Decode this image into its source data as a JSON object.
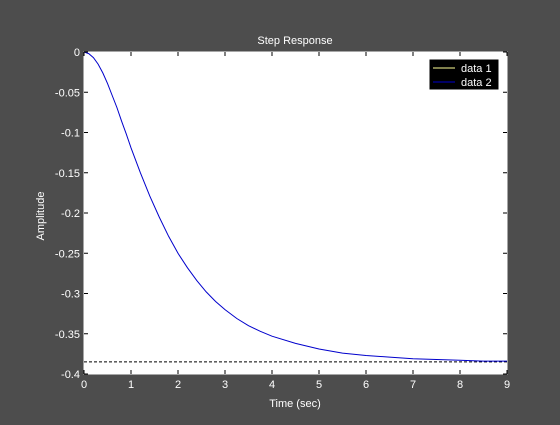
{
  "chart_data": {
    "type": "line",
    "title": "Step Response",
    "xlabel": "Time (sec)",
    "ylabel": "Amplitude",
    "xlim": [
      0,
      9
    ],
    "ylim": [
      -0.4,
      0
    ],
    "xticks": [
      0,
      1,
      2,
      3,
      4,
      5,
      6,
      7,
      8,
      9
    ],
    "yticks": [
      0,
      -0.05,
      -0.1,
      -0.15,
      -0.2,
      -0.25,
      -0.3,
      -0.35,
      -0.4
    ],
    "xtick_labels": [
      "0",
      "1",
      "2",
      "3",
      "4",
      "5",
      "6",
      "7",
      "8",
      "9"
    ],
    "ytick_labels": [
      "0",
      "-0.05",
      "-0.1",
      "-0.15",
      "-0.2",
      "-0.25",
      "-0.3",
      "-0.35",
      "-0.4"
    ],
    "grid": false,
    "legend_position": "top-right",
    "steady_state": -0.385,
    "colors": {
      "figure_bg": "#4d4d4d",
      "axes_bg": "#ffffff",
      "axes_fg": "#ffffff",
      "legend_bg": "#000000"
    },
    "series": [
      {
        "name": "data 1",
        "color": "#ffff99",
        "x": [],
        "y": []
      },
      {
        "name": "data 2",
        "color": "#0000cc",
        "x": [
          0,
          0.1,
          0.2,
          0.3,
          0.4,
          0.5,
          0.6,
          0.7,
          0.8,
          0.9,
          1.0,
          1.2,
          1.4,
          1.6,
          1.8,
          2.0,
          2.2,
          2.4,
          2.6,
          2.8,
          3.0,
          3.25,
          3.5,
          3.75,
          4.0,
          4.5,
          5.0,
          5.5,
          6.0,
          6.5,
          7.0,
          7.5,
          8.0,
          8.5,
          9.0
        ],
        "y": [
          0,
          -0.002,
          -0.007,
          -0.015,
          -0.026,
          -0.039,
          -0.054,
          -0.069,
          -0.086,
          -0.102,
          -0.119,
          -0.15,
          -0.179,
          -0.205,
          -0.229,
          -0.25,
          -0.268,
          -0.284,
          -0.298,
          -0.31,
          -0.32,
          -0.331,
          -0.34,
          -0.347,
          -0.353,
          -0.362,
          -0.369,
          -0.374,
          -0.377,
          -0.379,
          -0.381,
          -0.382,
          -0.383,
          -0.384,
          -0.384
        ]
      }
    ]
  }
}
